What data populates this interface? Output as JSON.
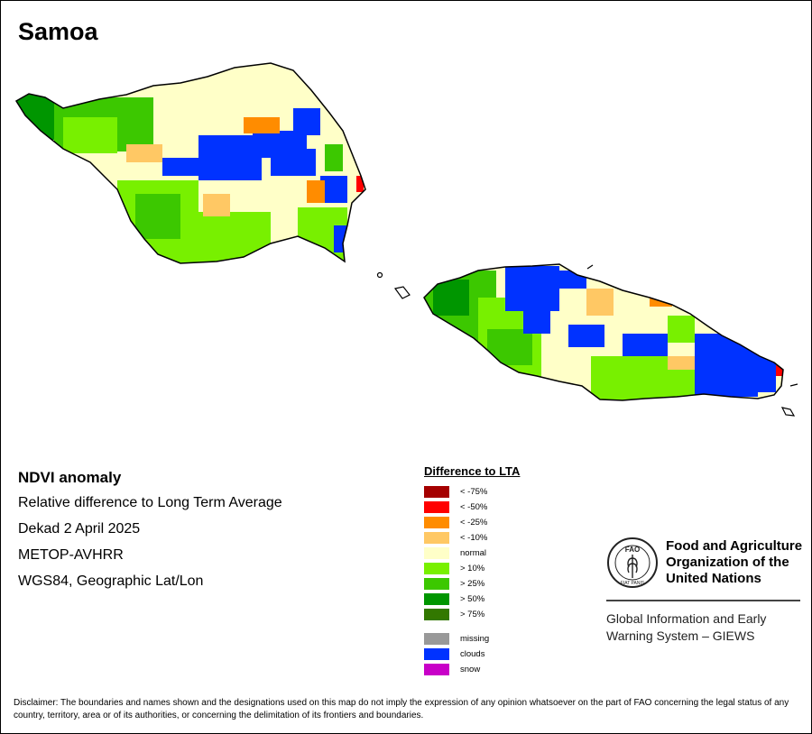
{
  "title": "Samoa",
  "info": {
    "heading": "NDVI anomaly",
    "lines": [
      "Relative difference to Long Term Average",
      "Dekad 2 April 2025",
      "METOP-AVHRR",
      "WGS84, Geographic Lat/Lon"
    ]
  },
  "legend": {
    "title": "Difference to LTA",
    "items": [
      {
        "label": "< -75%",
        "color": "#a50000"
      },
      {
        "label": "< -50%",
        "color": "#ff0000"
      },
      {
        "label": "< -25%",
        "color": "#ff8c00"
      },
      {
        "label": "< -10%",
        "color": "#ffc864"
      },
      {
        "label": "normal",
        "color": "#ffffc8"
      },
      {
        "label": "> 10%",
        "color": "#78f000"
      },
      {
        "label": "> 25%",
        "color": "#3cc800"
      },
      {
        "label": "> 50%",
        "color": "#009600"
      },
      {
        "label": "> 75%",
        "color": "#327800"
      }
    ],
    "extra": [
      {
        "label": "missing",
        "color": "#999999"
      },
      {
        "label": "clouds",
        "color": "#0032ff"
      },
      {
        "label": "snow",
        "color": "#c800c8"
      }
    ]
  },
  "org": {
    "name": "Food and Agriculture Organization of the United Nations",
    "logo_text": "FAO",
    "logo_motto": "FIAT PANIS",
    "giews": "Global Information and Early Warning System – GIEWS"
  },
  "disclaimer": "Disclaimer: The boundaries and names shown and the designations used on this map do not imply the expression of any opinion whatsoever on the part of FAO concerning the legal status of any country, territory, area or of its authorities, or concerning the delimitation of its frontiers and boundaries."
}
